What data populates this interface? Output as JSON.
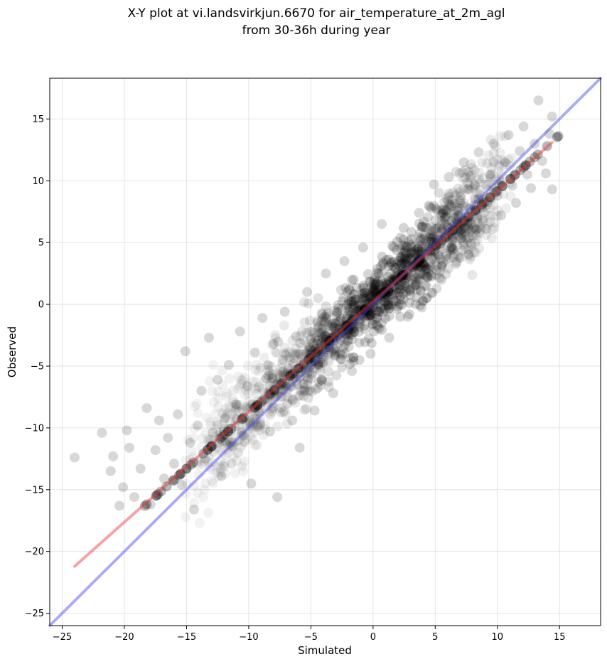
{
  "chart_data": {
    "type": "scatter",
    "title_line1": "X-Y plot at vi.landsvirkjun.6670 for air_temperature_at_2m_agl",
    "title_line2": "from 30-36h during year",
    "xlabel": "Simulated",
    "ylabel": "Observed",
    "xlim": [
      -26,
      18.3
    ],
    "ylim": [
      -26,
      18.3
    ],
    "xticks": [
      -25,
      -20,
      -15,
      -10,
      -5,
      0,
      5,
      10,
      15
    ],
    "yticks": [
      -25,
      -20,
      -15,
      -10,
      -5,
      0,
      5,
      10,
      15
    ],
    "grid": true,
    "legend": "none",
    "series": [
      {
        "kind": "scatter",
        "color": "#000000",
        "opacity": 0.07,
        "points": [
          [
            -24.0,
            -12.4
          ],
          [
            -21.8,
            -10.4
          ],
          [
            -21.1,
            -13.5
          ],
          [
            -20.9,
            -12.3
          ],
          [
            -20.4,
            -16.3
          ],
          [
            -20.1,
            -14.8
          ],
          [
            -19.8,
            -10.2
          ],
          [
            -19.6,
            -11.6
          ],
          [
            -19.2,
            -15.6
          ],
          [
            -18.7,
            -13.3
          ],
          [
            -18.2,
            -8.4
          ],
          [
            -17.9,
            -16.2
          ],
          [
            -17.5,
            -11.8
          ],
          [
            -17.2,
            -9.4
          ],
          [
            -16.8,
            -14.1
          ],
          [
            -16.5,
            -10.8
          ],
          [
            -16.0,
            -12.9
          ],
          [
            -15.7,
            -8.9
          ],
          [
            -15.4,
            -14.6
          ],
          [
            -15.1,
            -3.8
          ],
          [
            -14.7,
            -11.2
          ],
          [
            -14.4,
            -16.6
          ],
          [
            -14.1,
            -9.8
          ],
          [
            -13.8,
            -7.0
          ],
          [
            -13.5,
            -12.5
          ],
          [
            -13.2,
            -2.7
          ],
          [
            -12.9,
            -10.4
          ],
          [
            -12.5,
            -6.1
          ],
          [
            -12.2,
            -13.9
          ],
          [
            -11.9,
            -9.2
          ],
          [
            -11.6,
            -4.9
          ],
          [
            -11.3,
            -11.5
          ],
          [
            -11.0,
            -8.1
          ],
          [
            -10.7,
            -2.2
          ],
          [
            -10.4,
            -10.6
          ],
          [
            -10.1,
            -6.6
          ],
          [
            -9.8,
            -14.5
          ],
          [
            -9.5,
            -3.9
          ],
          [
            -9.2,
            -8.7
          ],
          [
            -8.9,
            -1.1
          ],
          [
            -8.6,
            -6.0
          ],
          [
            -8.3,
            -10.3
          ],
          [
            -8.0,
            -3.2
          ],
          [
            -7.7,
            -15.6
          ],
          [
            -7.4,
            -7.5
          ],
          [
            -7.1,
            -0.6
          ],
          [
            -6.8,
            -5.2
          ],
          [
            -6.5,
            -9.4
          ],
          [
            -6.2,
            -2.6
          ],
          [
            -5.9,
            -11.6
          ],
          [
            -5.6,
            -6.4
          ],
          [
            -5.3,
            1.0
          ],
          [
            -5.0,
            -4.1
          ],
          [
            -4.7,
            -8.6
          ],
          [
            -4.4,
            -1.9
          ],
          [
            -4.1,
            -6.1
          ],
          [
            -3.8,
            2.5
          ],
          [
            -3.5,
            -3.5
          ],
          [
            -3.2,
            -7.2
          ],
          [
            -2.9,
            -0.7
          ],
          [
            -2.6,
            -4.4
          ],
          [
            -2.3,
            3.5
          ],
          [
            -2.0,
            -2.0
          ],
          [
            -1.7,
            -5.4
          ],
          [
            -1.4,
            0.4
          ],
          [
            -1.1,
            -3.1
          ],
          [
            -0.8,
            4.6
          ],
          [
            -0.5,
            -0.9
          ],
          [
            -0.2,
            -4.0
          ],
          [
            0.1,
            1.6
          ],
          [
            0.4,
            -1.8
          ],
          [
            0.7,
            6.5
          ],
          [
            1.0,
            0.6
          ],
          [
            1.3,
            -2.7
          ],
          [
            1.6,
            3.1
          ],
          [
            1.9,
            -0.4
          ],
          [
            2.2,
            5.4
          ],
          [
            2.5,
            2.0
          ],
          [
            2.8,
            -1.0
          ],
          [
            3.1,
            4.3
          ],
          [
            3.4,
            1.5
          ],
          [
            3.7,
            7.4
          ],
          [
            4.0,
            3.3
          ],
          [
            4.3,
            0.5
          ],
          [
            4.6,
            5.5
          ],
          [
            4.9,
            9.7
          ],
          [
            5.2,
            4.0
          ],
          [
            5.5,
            2.0
          ],
          [
            5.8,
            7.1
          ],
          [
            6.1,
            10.3
          ],
          [
            6.4,
            5.3
          ],
          [
            6.7,
            3.4
          ],
          [
            7.0,
            8.4
          ],
          [
            7.3,
            11.5
          ],
          [
            7.6,
            6.6
          ],
          [
            7.9,
            4.9
          ],
          [
            8.2,
            9.6
          ],
          [
            8.5,
            12.3
          ],
          [
            8.8,
            7.8
          ],
          [
            9.1,
            6.1
          ],
          [
            9.4,
            10.5
          ],
          [
            9.7,
            13.0
          ],
          [
            10.0,
            8.8
          ],
          [
            10.3,
            7.2
          ],
          [
            10.6,
            11.5
          ],
          [
            10.9,
            13.7
          ],
          [
            11.2,
            9.6
          ],
          [
            11.5,
            8.2
          ],
          [
            11.8,
            12.4
          ],
          [
            12.1,
            14.4
          ],
          [
            12.4,
            10.5
          ],
          [
            12.7,
            9.4
          ],
          [
            13.0,
            13.0
          ],
          [
            13.3,
            16.5
          ],
          [
            13.6,
            11.6
          ],
          [
            13.9,
            10.6
          ],
          [
            14.2,
            13.8
          ],
          [
            14.4,
            9.3
          ],
          [
            14.4,
            15.2
          ]
        ]
      },
      {
        "kind": "line",
        "name": "",
        "color": "#4444ee",
        "opacity": 0.45,
        "x": [
          -26,
          18.3
        ],
        "y": [
          -26,
          18.3
        ]
      },
      {
        "kind": "line",
        "name": "",
        "color": "#ee3333",
        "opacity": 0.45,
        "x": [
          -24.0,
          14.4
        ],
        "y": [
          -21.2,
          13.1
        ]
      }
    ]
  }
}
